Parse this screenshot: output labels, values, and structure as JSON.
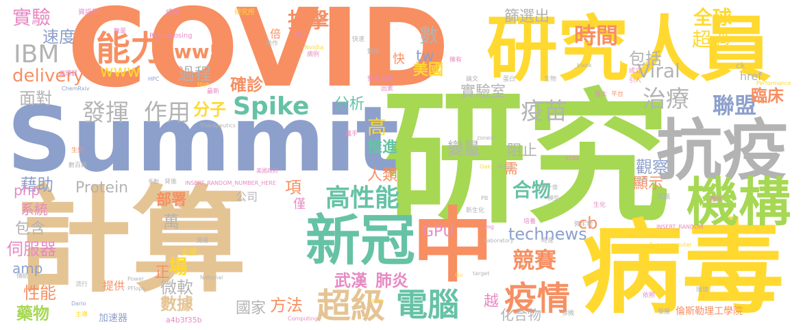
{
  "palette": {
    "orange": "#f78f62",
    "blue": "#8da0cb",
    "green": "#a6d854",
    "yellow": "#ffd92f",
    "tan": "#e5c494",
    "teal": "#66c2a5",
    "gray": "#b3b3b3",
    "pink": "#e78ac3"
  },
  "words": [
    {
      "text": "COVID",
      "color": "orange"
    },
    {
      "text": "研究",
      "color": "green"
    },
    {
      "text": "Summit",
      "color": "blue"
    },
    {
      "text": "計算",
      "color": "tan"
    },
    {
      "text": "病毒",
      "color": "yellow"
    },
    {
      "text": "中",
      "color": "orange"
    },
    {
      "text": "抗疫",
      "color": "gray"
    },
    {
      "text": "研究人員",
      "color": "yellow"
    },
    {
      "text": "機構",
      "color": "green"
    },
    {
      "text": "新冠",
      "color": "teal"
    },
    {
      "text": "能力",
      "color": "orange"
    },
    {
      "text": "超級",
      "color": "tan"
    },
    {
      "text": "電腦",
      "color": "teal"
    },
    {
      "text": "疫情",
      "color": "orange"
    },
    {
      "text": "IBM",
      "color": "gray"
    },
    {
      "text": "高性能",
      "color": "teal"
    },
    {
      "text": "Spike",
      "color": "teal"
    },
    {
      "text": "發揮",
      "color": "gray"
    },
    {
      "text": "作用",
      "color": "gray"
    },
    {
      "text": "疫苗",
      "color": "gray"
    },
    {
      "text": "治療",
      "color": "gray"
    },
    {
      "text": "聯盟",
      "color": "blue"
    },
    {
      "text": "時間",
      "color": "orange"
    },
    {
      "text": "抗擊",
      "color": "orange"
    },
    {
      "text": "www5",
      "color": "orange"
    },
    {
      "text": "全球",
      "color": "yellow"
    },
    {
      "text": "超過",
      "color": "yellow"
    },
    {
      "text": "Viral",
      "color": "gray"
    },
    {
      "text": "篩選出",
      "color": "gray"
    },
    {
      "text": "實驗",
      "color": "pink"
    },
    {
      "text": "速度",
      "color": "blue"
    },
    {
      "text": "delivery",
      "color": "orange"
    },
    {
      "text": "www",
      "color": "yellow"
    },
    {
      "text": "過程",
      "color": "gray"
    },
    {
      "text": "確診",
      "color": "orange"
    },
    {
      "text": "分子",
      "color": "yellow"
    },
    {
      "text": "面對",
      "color": "gray"
    },
    {
      "text": "藉助",
      "color": "blue"
    },
    {
      "text": "數",
      "color": "gray"
    },
    {
      "text": "美國",
      "color": "yellow"
    },
    {
      "text": "tw",
      "color": "blue"
    },
    {
      "text": "實驗室",
      "color": "gray"
    },
    {
      "text": "包括",
      "color": "gray"
    },
    {
      "text": "臨床",
      "color": "orange"
    },
    {
      "text": "分析",
      "color": "teal"
    },
    {
      "text": "高",
      "color": "yellow"
    },
    {
      "text": "變量",
      "color": "gray"
    },
    {
      "text": "推進",
      "color": "teal"
    },
    {
      "text": "阻止",
      "color": "gray"
    },
    {
      "text": "觀察",
      "color": "blue"
    },
    {
      "text": "顯示",
      "color": "orange"
    },
    {
      "text": "合物",
      "color": "teal"
    },
    {
      "text": "人類",
      "color": "orange"
    },
    {
      "text": "Protein",
      "color": "gray"
    },
    {
      "text": "php",
      "color": "pink"
    },
    {
      "text": "系統",
      "color": "pink"
    },
    {
      "text": "包含",
      "color": "gray"
    },
    {
      "text": "伺服器",
      "color": "pink"
    },
    {
      "text": "amp",
      "color": "blue"
    },
    {
      "text": "性能",
      "color": "orange"
    },
    {
      "text": "藥物",
      "color": "green"
    },
    {
      "text": "部署",
      "color": "orange"
    },
    {
      "text": "萬",
      "color": "gray"
    },
    {
      "text": "項",
      "color": "orange"
    },
    {
      "text": "cb",
      "color": "orange"
    },
    {
      "text": "GPU",
      "color": "pink"
    },
    {
      "text": "technews",
      "color": "blue"
    },
    {
      "text": "競賽",
      "color": "orange"
    },
    {
      "text": "武漢",
      "color": "pink"
    },
    {
      "text": "肺炎",
      "color": "pink"
    },
    {
      "text": "方法",
      "color": "orange"
    },
    {
      "text": "越",
      "color": "pink"
    },
    {
      "text": "化合物",
      "color": "gray"
    },
    {
      "text": "國家",
      "color": "gray"
    },
    {
      "text": "微軟",
      "color": "gray"
    },
    {
      "text": "數據",
      "color": "tan"
    },
    {
      "text": "場",
      "color": "yellow"
    },
    {
      "text": "正",
      "color": "orange"
    },
    {
      "text": "支援",
      "color": "yellow"
    },
    {
      "text": "提供",
      "color": "orange"
    },
    {
      "text": "倫斯勒理工學院",
      "color": "orange"
    },
    {
      "text": "a4b3f35b",
      "color": "pink"
    },
    {
      "text": "加速器",
      "color": "blue"
    },
    {
      "text": "倍",
      "color": "orange"
    },
    {
      "text": "快",
      "color": "orange"
    },
    {
      "text": "需",
      "color": "orange"
    },
    {
      "text": "公司",
      "color": "gray"
    },
    {
      "text": "僅",
      "color": "pink"
    },
    {
      "text": "資訊學",
      "color": "pink"
    },
    {
      "text": "研究所",
      "color": "yellow"
    },
    {
      "text": "成果",
      "color": "pink"
    },
    {
      "text": "Repurposing",
      "color": "pink"
    },
    {
      "text": "核心",
      "color": "pink"
    },
    {
      "text": "Nvidia",
      "color": "yellow"
    },
    {
      "text": "病例",
      "color": "pink"
    },
    {
      "text": "對抗",
      "color": "gray"
    },
    {
      "text": "預測",
      "color": "pink"
    },
    {
      "text": "加速",
      "color": "pink"
    },
    {
      "text": "生物",
      "color": "gray"
    },
    {
      "text": "成立",
      "color": "pink"
    },
    {
      "text": "攜手",
      "color": "pink"
    },
    {
      "text": "擁有",
      "color": "pink"
    },
    {
      "text": "論文",
      "color": "gray"
    },
    {
      "text": "因素",
      "color": "pink"
    },
    {
      "text": "ChemRxiv",
      "color": "blue"
    },
    {
      "text": "HPC",
      "color": "blue"
    },
    {
      "text": "High",
      "color": "yellow"
    },
    {
      "text": "Therapeutics",
      "color": "gray"
    },
    {
      "text": "Performance",
      "color": "yellow"
    },
    {
      "text": "平台",
      "color": "orange"
    },
    {
      "text": "強大",
      "color": "pink"
    },
    {
      "text": "_blank",
      "color": "gray"
    },
    {
      "text": "href",
      "color": "gray"
    },
    {
      "text": "ck",
      "color": "gray"
    },
    {
      "text": "引入",
      "color": "pink"
    },
    {
      "text": "zoneid",
      "color": "gray"
    },
    {
      "text": "Ridge",
      "color": "gray"
    },
    {
      "text": "V100",
      "color": "pink"
    },
    {
      "text": "Oak",
      "color": "yellow"
    },
    {
      "text": "數十億",
      "color": "gray"
    },
    {
      "text": "模型",
      "color": "gray"
    },
    {
      "text": "INSERT_RANDOM_NUMBER_HERE",
      "color": "pink"
    },
    {
      "text": "INSERT_RANDOM",
      "color": "pink"
    },
    {
      "text": "美國政府",
      "color": "pink"
    },
    {
      "text": "Laboratory",
      "color": "gray"
    },
    {
      "text": "Supercomputer",
      "color": "yellow"
    },
    {
      "text": "National",
      "color": "gray"
    },
    {
      "text": "PFlops",
      "color": "gray"
    },
    {
      "text": "Power",
      "color": "gray"
    },
    {
      "text": "Volta",
      "color": "yellow"
    },
    {
      "text": "Computing",
      "color": "pink"
    },
    {
      "text": "target",
      "color": "gray"
    },
    {
      "text": "Gu",
      "color": "yellow"
    },
    {
      "text": "PB",
      "color": "gray"
    },
    {
      "text": "img",
      "color": "pink"
    },
    {
      "text": "Dario",
      "color": "blue"
    },
    {
      "text": "生死",
      "color": "orange"
    },
    {
      "text": "數百萬",
      "color": "gray"
    },
    {
      "text": "手動",
      "color": "gray"
    },
    {
      "text": "背後",
      "color": "gray"
    },
    {
      "text": "流行",
      "color": "gray"
    },
    {
      "text": "傳統",
      "color": "gray"
    },
    {
      "text": "主導",
      "color": "yellow"
    },
    {
      "text": "時速",
      "color": "gray"
    },
    {
      "text": "培養",
      "color": "pink"
    },
    {
      "text": "微生物",
      "color": "gray"
    },
    {
      "text": "生化",
      "color": "pink"
    },
    {
      "text": "發展",
      "color": "gray"
    },
    {
      "text": "依照",
      "color": "pink"
    },
    {
      "text": "發機",
      "color": "gray"
    },
    {
      "text": "環境",
      "color": "gray"
    },
    {
      "text": "處理器",
      "color": "pink"
    },
    {
      "text": "數量",
      "color": "pink"
    },
    {
      "text": "操作",
      "color": "gray"
    },
    {
      "text": "快速",
      "color": "gray"
    },
    {
      "text": "團隊",
      "color": "pink"
    },
    {
      "text": "世界",
      "color": "gray"
    },
    {
      "text": "電腦",
      "color": "gray"
    },
    {
      "text": "最新",
      "color": "pink"
    },
    {
      "text": "新生化",
      "color": "gray"
    },
    {
      "text": "蛋白",
      "color": "gray"
    },
    {
      "text": "溝通",
      "color": "gray"
    }
  ]
}
